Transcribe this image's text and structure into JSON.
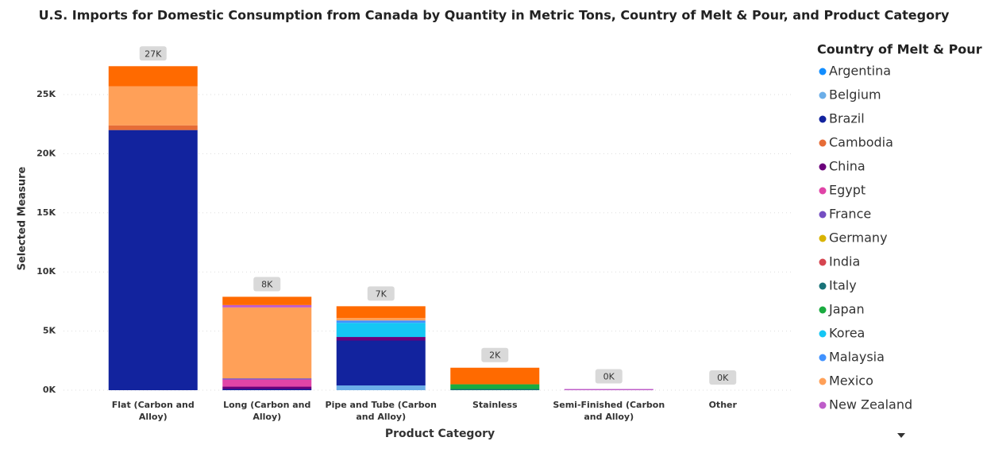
{
  "chart_data": {
    "type": "bar",
    "stacked": true,
    "title": "U.S. Imports for Domestic Consumption from Canada by Quantity in Metric Tons, Country of Melt & Pour, and Product Category",
    "x_label": "Product Category",
    "y_label": "Selected Measure",
    "legend_title": "Country of Melt & Pour",
    "legend_position": "right",
    "grid": true,
    "categories": [
      "Flat (Carbon and Alloy)",
      "Long (Carbon and Alloy)",
      "Pipe and Tube (Carbon and Alloy)",
      "Stainless",
      "Semi-Finished (Carbon and Alloy)",
      "Other"
    ],
    "ylim": [
      0,
      27500
    ],
    "yticks": [
      {
        "value": 0,
        "label": "0K"
      },
      {
        "value": 5000,
        "label": "5K"
      },
      {
        "value": 10000,
        "label": "10K"
      },
      {
        "value": 15000,
        "label": "15K"
      },
      {
        "value": 20000,
        "label": "20K"
      },
      {
        "value": 25000,
        "label": "25K"
      }
    ],
    "totals": [
      27400,
      7900,
      7100,
      1900,
      100,
      0
    ],
    "total_labels": [
      "27K",
      "8K",
      "7K",
      "2K",
      "0K",
      "0K"
    ],
    "series": [
      {
        "name": "Argentina",
        "color": "#118DFF",
        "values": [
          0,
          0,
          0,
          0,
          0,
          0
        ]
      },
      {
        "name": "Belgium",
        "color": "#6BAEE8",
        "values": [
          0,
          0,
          400,
          0,
          0,
          0
        ]
      },
      {
        "name": "Brazil",
        "color": "#12239E",
        "values": [
          22000,
          100,
          3800,
          0,
          0,
          0
        ]
      },
      {
        "name": "Cambodia",
        "color": "#E66C37",
        "values": [
          400,
          0,
          0,
          0,
          0,
          0
        ]
      },
      {
        "name": "China",
        "color": "#6B007B",
        "values": [
          0,
          200,
          300,
          0,
          0,
          0
        ]
      },
      {
        "name": "Egypt",
        "color": "#E044A7",
        "values": [
          0,
          600,
          0,
          0,
          0,
          0
        ]
      },
      {
        "name": "France",
        "color": "#744EC2",
        "values": [
          0,
          100,
          0,
          0,
          0,
          0
        ]
      },
      {
        "name": "Germany",
        "color": "#D9B300",
        "values": [
          0,
          0,
          0,
          0,
          0,
          0
        ]
      },
      {
        "name": "India",
        "color": "#D64550",
        "values": [
          0,
          0,
          0,
          0,
          0,
          0
        ]
      },
      {
        "name": "Italy",
        "color": "#197278",
        "values": [
          0,
          0,
          0,
          100,
          0,
          0
        ]
      },
      {
        "name": "Japan",
        "color": "#1AAB40",
        "values": [
          0,
          0,
          0,
          400,
          0,
          0
        ]
      },
      {
        "name": "Korea",
        "color": "#15C6F4",
        "values": [
          0,
          0,
          1200,
          0,
          0,
          0
        ]
      },
      {
        "name": "Malaysia",
        "color": "#4092FF",
        "values": [
          0,
          0,
          200,
          0,
          0,
          0
        ]
      },
      {
        "name": "Mexico",
        "color": "#FFA058",
        "values": [
          3300,
          6000,
          200,
          0,
          0,
          0
        ]
      },
      {
        "name": "New Zealand",
        "color": "#BE5DC9",
        "values": [
          0,
          200,
          0,
          0,
          100,
          0
        ]
      },
      {
        "name": null,
        "color": "#FF6A00",
        "values": [
          1700,
          700,
          1000,
          1400,
          0,
          0
        ]
      }
    ]
  }
}
